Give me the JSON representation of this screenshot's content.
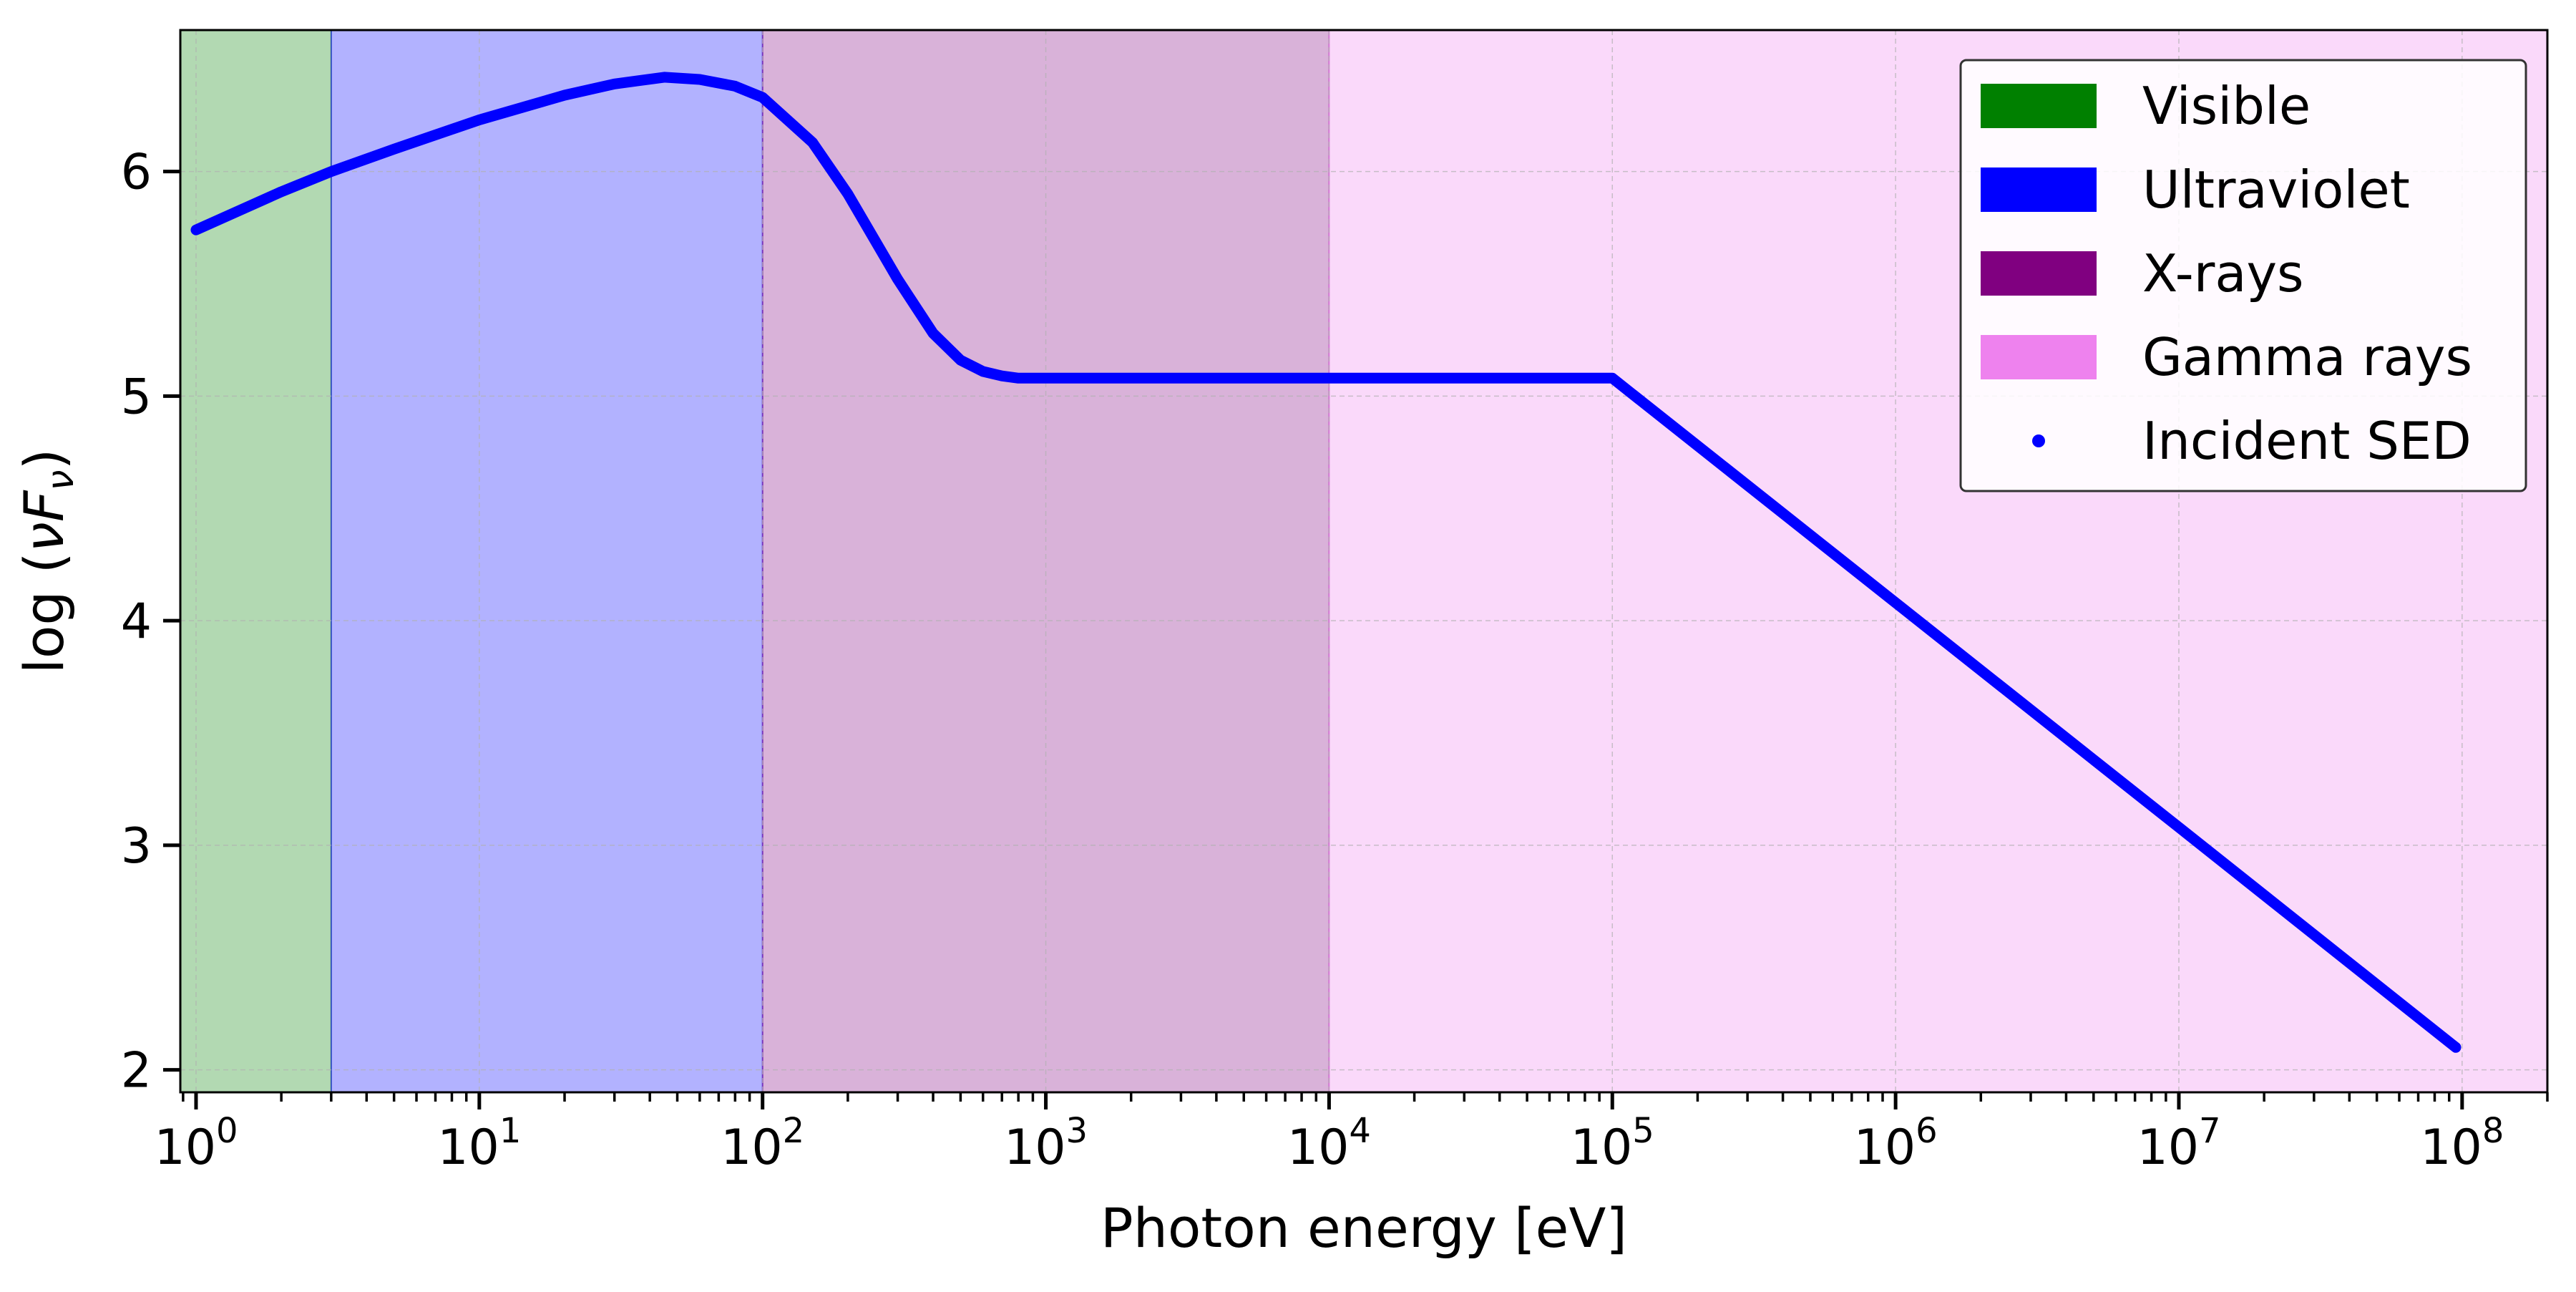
{
  "chart_data": {
    "type": "line",
    "xlabel": "Photon energy [eV]",
    "ylabel_main": "log (",
    "ylabel_symbol": "νF",
    "ylabel_sub": "ν",
    "ylabel_close": ")",
    "x_scale": "log",
    "xlim": [
      0.88,
      200000000
    ],
    "ylim": [
      1.9,
      6.63
    ],
    "grid": true,
    "legend_position": "top-right",
    "x_ticks": [
      {
        "value": 1,
        "base": "10",
        "exp": "0"
      },
      {
        "value": 10,
        "base": "10",
        "exp": "1"
      },
      {
        "value": 100,
        "base": "10",
        "exp": "2"
      },
      {
        "value": 1000,
        "base": "10",
        "exp": "3"
      },
      {
        "value": 10000,
        "base": "10",
        "exp": "4"
      },
      {
        "value": 100000,
        "base": "10",
        "exp": "5"
      },
      {
        "value": 1000000,
        "base": "10",
        "exp": "6"
      },
      {
        "value": 10000000,
        "base": "10",
        "exp": "7"
      },
      {
        "value": 100000000,
        "base": "10",
        "exp": "8"
      }
    ],
    "y_ticks": [
      {
        "value": 2,
        "label": "2"
      },
      {
        "value": 3,
        "label": "3"
      },
      {
        "value": 4,
        "label": "4"
      },
      {
        "value": 5,
        "label": "5"
      },
      {
        "value": 6,
        "label": "6"
      }
    ],
    "bands": [
      {
        "name": "Visible",
        "x_start": 0.88,
        "x_end": 3,
        "color": "#008000",
        "fill_opacity": 0.3
      },
      {
        "name": "Ultraviolet",
        "x_start": 3,
        "x_end": 100,
        "color": "#0000ff",
        "fill_opacity": 0.3
      },
      {
        "name": "X-rays",
        "x_start": 100,
        "x_end": 10000,
        "color": "#800080",
        "fill_opacity": 0.3
      },
      {
        "name": "Gamma rays",
        "x_start": 10000,
        "x_end": 200000000,
        "color": "#ee82ee",
        "fill_opacity": 0.3
      }
    ],
    "series": [
      {
        "name": "Incident SED",
        "color": "#0000ff",
        "marker": "point",
        "x": [
          1,
          2,
          3,
          5,
          10,
          20,
          30,
          45,
          60,
          80,
          100,
          150,
          200,
          300,
          400,
          500,
          600,
          700,
          800,
          1000,
          2000,
          5000,
          10000,
          30000,
          100000,
          1000000,
          10000000,
          95000000
        ],
        "y": [
          5.74,
          5.91,
          6.0,
          6.1,
          6.23,
          6.34,
          6.39,
          6.42,
          6.41,
          6.38,
          6.33,
          6.13,
          5.9,
          5.52,
          5.28,
          5.16,
          5.11,
          5.09,
          5.08,
          5.08,
          5.08,
          5.08,
          5.08,
          5.08,
          5.08,
          4.08,
          3.08,
          2.1
        ]
      }
    ]
  }
}
